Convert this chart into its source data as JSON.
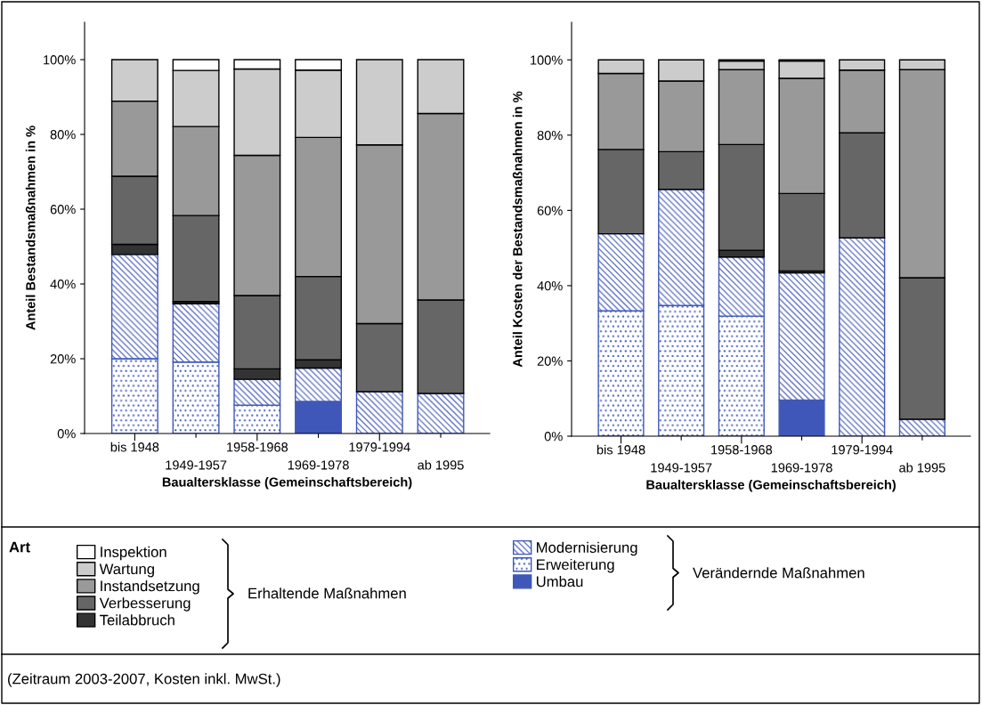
{
  "chart_data": [
    {
      "type": "bar",
      "stacked": true,
      "xlabel": "Baualtersklasse (Gemeinschaftsbereich)",
      "ylabel": "Anteil Bestandsmaßnahmen in %",
      "categories": [
        "bis 1948",
        "1949-1957",
        "1958-1968",
        "1969-1978",
        "1979-1994",
        "ab 1995"
      ],
      "ylim": [
        0,
        110
      ],
      "yticks": [
        {
          "value": 0,
          "label": "0%"
        },
        {
          "value": 20,
          "label": "20%"
        },
        {
          "value": 40,
          "label": "40%"
        },
        {
          "value": 60,
          "label": "60%"
        },
        {
          "value": 80,
          "label": "80%"
        },
        {
          "value": 100,
          "label": "100%"
        }
      ],
      "grid": false,
      "legend": "bottom",
      "legend_title": "Art",
      "series": [
        {
          "name": "Umbau",
          "color": "#3f57b8",
          "values": [
            0,
            0,
            0,
            8.6,
            0,
            0
          ]
        },
        {
          "name": "Erweiterung",
          "color": "#3f57b8",
          "values": [
            20.0,
            19.1,
            7.6,
            0,
            0,
            0
          ]
        },
        {
          "name": "Modernisierung",
          "color": "#3f57b8",
          "values": [
            27.9,
            15.6,
            6.9,
            8.9,
            11.2,
            10.7
          ]
        },
        {
          "name": "Teilabbruch",
          "color": "#333333",
          "values": [
            2.7,
            0.6,
            2.8,
            2.2,
            0,
            0
          ]
        },
        {
          "name": "Verbesserung",
          "color": "#666666",
          "values": [
            18.2,
            23.0,
            19.6,
            22.3,
            18.2,
            25.0
          ]
        },
        {
          "name": "Instandsetzung",
          "color": "#999999",
          "values": [
            20.1,
            23.8,
            37.5,
            37.2,
            47.8,
            49.9
          ]
        },
        {
          "name": "Wartung",
          "color": "#cccccc",
          "values": [
            11.1,
            15.0,
            23.1,
            18.0,
            22.8,
            14.4
          ]
        },
        {
          "name": "Inspektion",
          "color": "#ffffff",
          "values": [
            0,
            2.9,
            2.5,
            2.8,
            0,
            0
          ]
        }
      ],
      "annotations": [
        "Erhaltende Maßnahmen",
        "Verändernde Maßnahmen",
        "(Zeitraum 2003-2007, Kosten inkl. MwSt.)"
      ]
    },
    {
      "type": "bar",
      "stacked": true,
      "xlabel": "Baualtersklasse (Gemeinschaftsbereich)",
      "ylabel": "Anteil Kosten der Bestandsmaßnahmen in %",
      "categories": [
        "bis 1948",
        "1949-1957",
        "1958-1968",
        "1969-1978",
        "1979-1994",
        "ab 1995"
      ],
      "ylim": [
        0,
        110
      ],
      "yticks": [
        {
          "value": 0,
          "label": "0%"
        },
        {
          "value": 20,
          "label": "20%"
        },
        {
          "value": 40,
          "label": "40%"
        },
        {
          "value": 60,
          "label": "60%"
        },
        {
          "value": 80,
          "label": "80%"
        },
        {
          "value": 100,
          "label": "100%"
        }
      ],
      "grid": false,
      "series": [
        {
          "color": "#3f57b8",
          "values": [
            0,
            0,
            0,
            9.6,
            0,
            0
          ]
        },
        {
          "color": "#3f57b8",
          "values": [
            33.3,
            34.7,
            31.9,
            0,
            0,
            0
          ]
        },
        {
          "color": "#3f57b8",
          "values": [
            20.5,
            30.9,
            15.7,
            33.8,
            52.7,
            4.5
          ]
        },
        {
          "color": "#333333",
          "values": [
            0,
            0,
            1.8,
            0.5,
            0,
            0
          ]
        },
        {
          "color": "#666666",
          "values": [
            22.4,
            10.0,
            28.1,
            20.6,
            27.9,
            37.6
          ]
        },
        {
          "color": "#999999",
          "values": [
            20.2,
            18.8,
            19.9,
            30.6,
            16.7,
            55.3
          ]
        },
        {
          "color": "#cccccc",
          "values": [
            3.6,
            5.6,
            2.3,
            4.6,
            2.7,
            2.6
          ]
        },
        {
          "color": "#ffffff",
          "values": [
            0,
            0,
            0.3,
            0.3,
            0,
            0
          ]
        }
      ]
    }
  ]
}
